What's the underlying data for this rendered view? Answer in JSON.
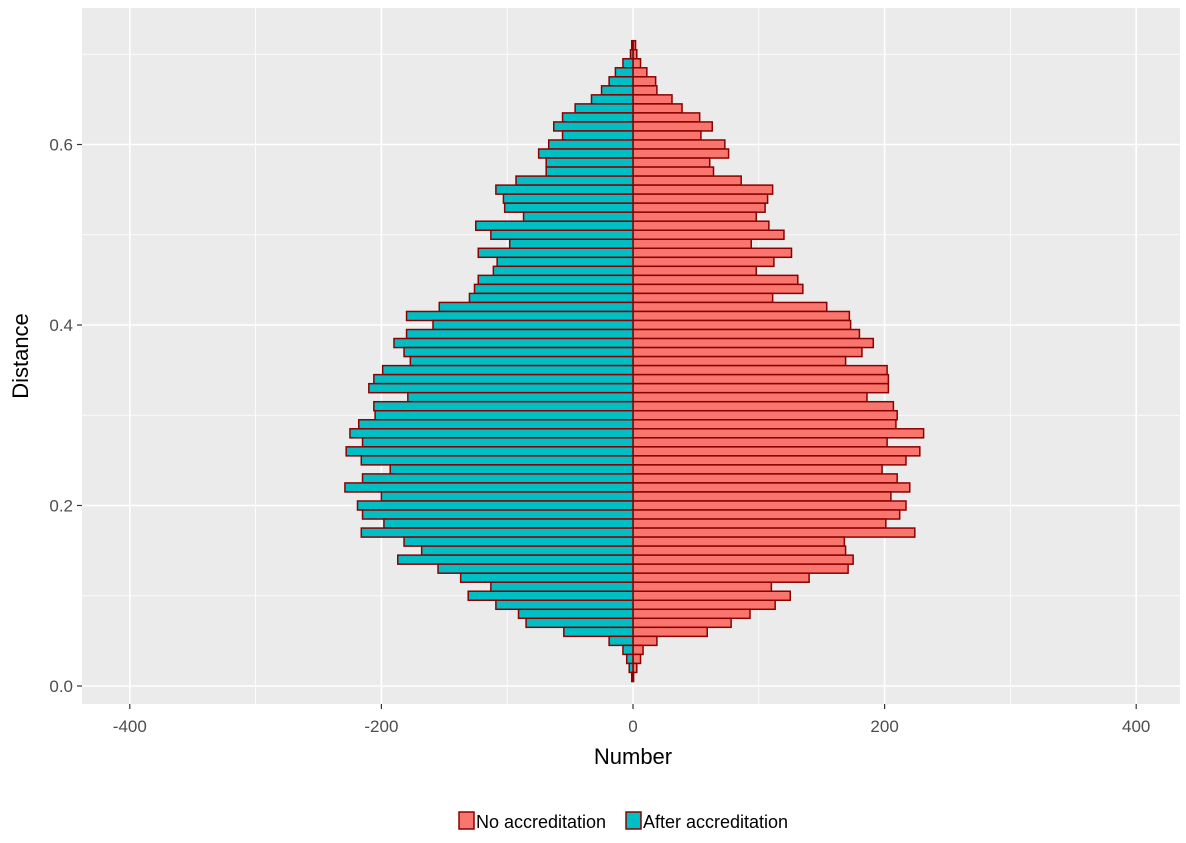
{
  "chart_data": {
    "type": "bar",
    "orientation": "horizontal",
    "layout": "population-pyramid",
    "xlabel": "Number",
    "ylabel": "Distance",
    "xlim": [
      -440,
      440
    ],
    "ylim": [
      -0.02,
      0.75
    ],
    "x_ticks": [
      -400,
      -200,
      0,
      200,
      400
    ],
    "x_tick_labels": [
      "-400",
      "-200",
      "0",
      "200",
      "400"
    ],
    "y_ticks": [
      0.0,
      0.2,
      0.4,
      0.6
    ],
    "y_tick_labels": [
      "0.0",
      "0.2",
      "0.4",
      "0.6"
    ],
    "grid": true,
    "legend_position": "bottom",
    "bin_width": 0.01,
    "panel_background": "#ebebeb",
    "grid_color": "#ffffff",
    "bar_outline": "#8b0000",
    "series": [
      {
        "name": "No accreditation",
        "color": "#f8766d",
        "side": "right",
        "y": [
          0.71,
          0.7,
          0.69,
          0.68,
          0.67,
          0.66,
          0.65,
          0.64,
          0.63,
          0.62,
          0.61,
          0.6,
          0.59,
          0.58,
          0.57,
          0.56,
          0.55,
          0.54,
          0.53,
          0.52,
          0.51,
          0.5,
          0.49,
          0.48,
          0.47,
          0.46,
          0.45,
          0.44,
          0.43,
          0.42,
          0.41,
          0.4,
          0.39,
          0.38,
          0.37,
          0.36,
          0.35,
          0.34,
          0.33,
          0.32,
          0.31,
          0.3,
          0.29,
          0.28,
          0.27,
          0.26,
          0.25,
          0.24,
          0.23,
          0.22,
          0.21,
          0.2,
          0.19,
          0.18,
          0.17,
          0.16,
          0.15,
          0.14,
          0.13,
          0.12,
          0.11,
          0.1,
          0.09,
          0.08,
          0.07,
          0.06,
          0.05,
          0.04,
          0.03,
          0.02,
          0.01
        ],
        "values": [
          2,
          3,
          6,
          11,
          18,
          19,
          31,
          39,
          53,
          63,
          54,
          73,
          76,
          61,
          64,
          86,
          111,
          107,
          105,
          98,
          108,
          120,
          94,
          126,
          112,
          98,
          131,
          135,
          111,
          154,
          172,
          173,
          180,
          191,
          182,
          169,
          202,
          203,
          203,
          186,
          207,
          210,
          209,
          231,
          202,
          228,
          217,
          198,
          210,
          220,
          205,
          217,
          212,
          201,
          224,
          168,
          169,
          175,
          171,
          140,
          110,
          125,
          113,
          93,
          78,
          59,
          19,
          8,
          6,
          3,
          0
        ]
      },
      {
        "name": "After accreditation",
        "color": "#00bfc4",
        "side": "left",
        "values": [
          -1,
          -2,
          -8,
          -14,
          -19,
          -25,
          -33,
          -46,
          -56,
          -63,
          -56,
          -67,
          -75,
          -69,
          -69,
          -93,
          -109,
          -103,
          -102,
          -87,
          -125,
          -113,
          -98,
          -123,
          -108,
          -111,
          -123,
          -126,
          -130,
          -154,
          -180,
          -159,
          -180,
          -190,
          -182,
          -177,
          -199,
          -206,
          -210,
          -179,
          -206,
          -205,
          -218,
          -225,
          -215,
          -228,
          -216,
          -193,
          -215,
          -229,
          -200,
          -219,
          -215,
          -198,
          -216,
          -182,
          -168,
          -187,
          -155,
          -137,
          -113,
          -131,
          -109,
          -91,
          -85,
          -55,
          -19,
          -8,
          -5,
          -3,
          -1
        ]
      }
    ]
  }
}
